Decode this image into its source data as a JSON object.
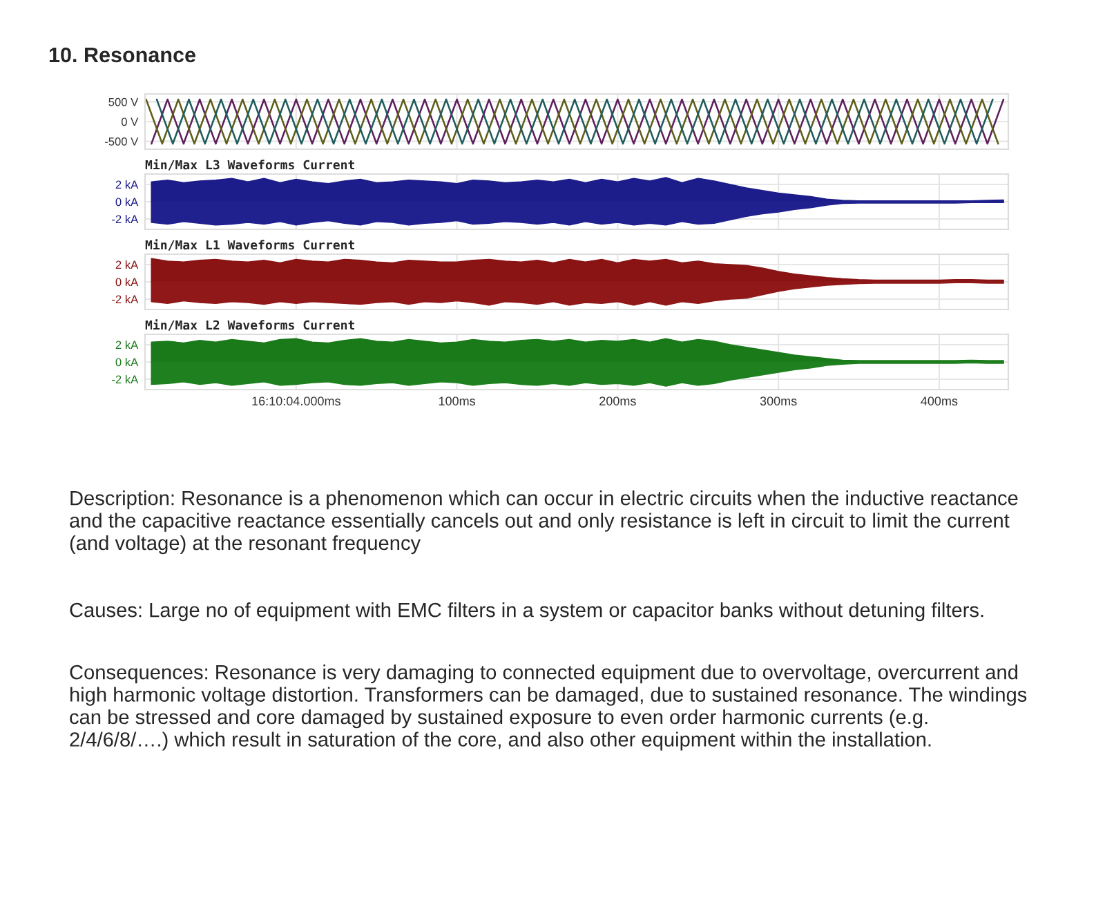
{
  "chart_data": [
    {
      "type": "line",
      "title": "10. Resonance",
      "xlim": [
        -94,
        443
      ],
      "xticks": [
        {
          "value": 0,
          "label": null
        },
        {
          "value": 100,
          "label": null
        },
        {
          "value": 200,
          "label": null
        },
        {
          "value": 300,
          "label": null
        },
        {
          "value": 400,
          "label": null
        }
      ],
      "ylim": [
        -700,
        700
      ],
      "yticks": [
        {
          "value": 500,
          "label": "500 V"
        },
        {
          "value": 0,
          "label": "0 V"
        },
        {
          "value": -500,
          "label": "-500 V"
        }
      ],
      "grid": true,
      "tick_labels": "y",
      "series": [
        {
          "color": "#5e1f5e",
          "x": [
            -90,
            -80,
            -70,
            -60,
            -50,
            -40,
            -30,
            -20,
            -10,
            0,
            10,
            20,
            30,
            40,
            50,
            60,
            70,
            80,
            90,
            100,
            110,
            120,
            130,
            140,
            150,
            160,
            170,
            180,
            190,
            200,
            210,
            220,
            230,
            240,
            250,
            260,
            270,
            280,
            290,
            300,
            310,
            320,
            330,
            340,
            350,
            360,
            370,
            380,
            390,
            400,
            410,
            420,
            430,
            440
          ],
          "values": [
            -560,
            560,
            -560,
            560,
            -560,
            560,
            -560,
            560,
            -560,
            560,
            -560,
            560,
            -560,
            560,
            -560,
            560,
            -560,
            560,
            -560,
            560,
            -560,
            560,
            -560,
            560,
            -560,
            560,
            -560,
            560,
            -560,
            560,
            -560,
            560,
            -560,
            560,
            -560,
            560,
            -560,
            560,
            -560,
            560,
            -560,
            560,
            -560,
            560,
            -560,
            560,
            -560,
            560,
            -560,
            560,
            -560,
            560,
            -560,
            560
          ]
        },
        {
          "color": "#5e5e1a",
          "x": [
            -93.3,
            -83.3,
            -73.3,
            -63.3,
            -53.3,
            -43.3,
            -33.3,
            -23.3,
            -13.3,
            -3.3,
            6.7,
            16.7,
            26.7,
            36.7,
            46.7,
            56.7,
            66.7,
            76.7,
            86.7,
            96.7,
            106.7,
            116.7,
            126.7,
            136.7,
            146.7,
            156.7,
            166.7,
            176.7,
            186.7,
            196.7,
            206.7,
            216.7,
            226.7,
            236.7,
            246.7,
            256.7,
            266.7,
            276.7,
            286.7,
            296.7,
            306.7,
            316.7,
            326.7,
            336.7,
            346.7,
            356.7,
            366.7,
            376.7,
            386.7,
            396.7,
            406.7,
            416.7,
            426.7,
            436.7
          ],
          "values": [
            560,
            -560,
            560,
            -560,
            560,
            -560,
            560,
            -560,
            560,
            -560,
            560,
            -560,
            560,
            -560,
            560,
            -560,
            560,
            -560,
            560,
            -560,
            560,
            -560,
            560,
            -560,
            560,
            -560,
            560,
            -560,
            560,
            -560,
            560,
            -560,
            560,
            -560,
            560,
            -560,
            560,
            -560,
            560,
            -560,
            560,
            -560,
            560,
            -560,
            560,
            -560,
            560,
            -560,
            560,
            -560,
            560,
            -560,
            560,
            -560
          ]
        },
        {
          "color": "#1f5c5c",
          "x": [
            -86.7,
            -76.7,
            -66.7,
            -56.7,
            -46.7,
            -36.7,
            -26.7,
            -16.7,
            -6.7,
            3.3,
            13.3,
            23.3,
            33.3,
            43.3,
            53.3,
            63.3,
            73.3,
            83.3,
            93.3,
            103.3,
            113.3,
            123.3,
            133.3,
            143.3,
            153.3,
            163.3,
            173.3,
            183.3,
            193.3,
            203.3,
            213.3,
            223.3,
            233.3,
            243.3,
            253.3,
            263.3,
            273.3,
            283.3,
            293.3,
            303.3,
            313.3,
            323.3,
            333.3,
            343.3,
            353.3,
            363.3,
            373.3,
            383.3,
            393.3,
            403.3,
            413.3,
            423.3,
            433.3
          ],
          "values": [
            560,
            -560,
            560,
            -560,
            560,
            -560,
            560,
            -560,
            560,
            -560,
            560,
            -560,
            560,
            -560,
            560,
            -560,
            560,
            -560,
            560,
            -560,
            560,
            -560,
            560,
            -560,
            560,
            -560,
            560,
            -560,
            560,
            -560,
            560,
            -560,
            560,
            -560,
            560,
            -560,
            560,
            -560,
            560,
            -560,
            560,
            -560,
            560,
            -560,
            560,
            -560,
            560,
            -560,
            560,
            -560,
            560,
            -560,
            560
          ]
        }
      ]
    },
    {
      "type": "area",
      "title": "Min/Max L3 Waveforms Current",
      "xlim": [
        -94,
        443
      ],
      "xticks": [
        {
          "value": 0,
          "label": null
        },
        {
          "value": 100,
          "label": null
        },
        {
          "value": 200,
          "label": null
        },
        {
          "value": 300,
          "label": null
        },
        {
          "value": 400,
          "label": null
        }
      ],
      "ylim": [
        -3.2,
        3.2
      ],
      "yticks": [
        {
          "value": 2,
          "label": "2 kA"
        },
        {
          "value": 0,
          "label": "0 kA"
        },
        {
          "value": -2,
          "label": "-2 kA"
        }
      ],
      "grid": true,
      "tick_labels": "y",
      "x": [
        -90,
        -80,
        -70,
        -60,
        -50,
        -40,
        -30,
        -20,
        -10,
        0,
        10,
        20,
        30,
        40,
        50,
        60,
        70,
        80,
        90,
        100,
        110,
        120,
        130,
        140,
        150,
        160,
        170,
        180,
        190,
        200,
        210,
        220,
        230,
        240,
        250,
        260,
        270,
        280,
        290,
        300,
        310,
        320,
        330,
        340,
        350,
        360,
        370,
        380,
        390,
        400,
        410,
        420,
        430,
        440
      ],
      "series": [
        {
          "color": "#1c1c8a",
          "values": [
            2.3,
            2.5,
            2.2,
            2.4,
            2.5,
            2.7,
            2.3,
            2.7,
            2.2,
            2.6,
            2.3,
            2.1,
            2.4,
            2.6,
            2.2,
            2.3,
            2.5,
            2.4,
            2.3,
            2.1,
            2.5,
            2.4,
            2.2,
            2.3,
            2.5,
            2.3,
            2.6,
            2.2,
            2.6,
            2.3,
            2.7,
            2.4,
            2.8,
            2.2,
            2.7,
            2.4,
            2.0,
            1.6,
            1.3,
            1.0,
            0.8,
            0.6,
            0.3,
            0.15,
            0.1,
            0.1,
            0.1,
            0.1,
            0.1,
            0.1,
            0.1,
            0.1,
            0.15,
            0.2
          ]
        },
        {
          "color": "#20208f",
          "values": [
            -2.4,
            -2.6,
            -2.3,
            -2.5,
            -2.7,
            -2.6,
            -2.4,
            -2.6,
            -2.3,
            -2.7,
            -2.4,
            -2.2,
            -2.5,
            -2.7,
            -2.3,
            -2.4,
            -2.7,
            -2.5,
            -2.4,
            -2.2,
            -2.6,
            -2.5,
            -2.3,
            -2.4,
            -2.6,
            -2.4,
            -2.7,
            -2.3,
            -2.6,
            -2.4,
            -2.7,
            -2.5,
            -2.7,
            -2.3,
            -2.6,
            -2.5,
            -2.1,
            -1.7,
            -1.4,
            -1.2,
            -0.9,
            -0.7,
            -0.4,
            -0.2,
            -0.15,
            -0.15,
            -0.15,
            -0.15,
            -0.15,
            -0.15,
            -0.15,
            -0.1,
            -0.1,
            -0.1
          ]
        }
      ]
    },
    {
      "type": "area",
      "title": "Min/Max L1 Waveforms Current",
      "xlim": [
        -94,
        443
      ],
      "xticks": [
        {
          "value": 0,
          "label": null
        },
        {
          "value": 100,
          "label": null
        },
        {
          "value": 200,
          "label": null
        },
        {
          "value": 300,
          "label": null
        },
        {
          "value": 400,
          "label": null
        }
      ],
      "ylim": [
        -3.2,
        3.2
      ],
      "yticks": [
        {
          "value": 2,
          "label": "2 kA"
        },
        {
          "value": 0,
          "label": "0 kA"
        },
        {
          "value": -2,
          "label": "-2 kA"
        }
      ],
      "grid": true,
      "tick_labels": "y",
      "x": [
        -90,
        -80,
        -70,
        -60,
        -50,
        -40,
        -30,
        -20,
        -10,
        0,
        10,
        20,
        30,
        40,
        50,
        60,
        70,
        80,
        90,
        100,
        110,
        120,
        130,
        140,
        150,
        160,
        170,
        180,
        190,
        200,
        210,
        220,
        230,
        240,
        250,
        260,
        270,
        280,
        290,
        300,
        310,
        320,
        330,
        340,
        350,
        360,
        370,
        380,
        390,
        400,
        410,
        420,
        430,
        440
      ],
      "series": [
        {
          "color": "#8a1414",
          "values": [
            2.7,
            2.4,
            2.3,
            2.5,
            2.6,
            2.4,
            2.3,
            2.5,
            2.2,
            2.6,
            2.4,
            2.3,
            2.6,
            2.5,
            2.3,
            2.2,
            2.5,
            2.4,
            2.3,
            2.3,
            2.5,
            2.6,
            2.4,
            2.3,
            2.5,
            2.2,
            2.6,
            2.3,
            2.6,
            2.2,
            2.6,
            2.4,
            2.6,
            2.2,
            2.4,
            2.1,
            2.0,
            1.9,
            1.6,
            1.2,
            0.9,
            0.7,
            0.5,
            0.35,
            0.25,
            0.2,
            0.2,
            0.2,
            0.2,
            0.2,
            0.25,
            0.25,
            0.2,
            0.2
          ]
        },
        {
          "color": "#901818",
          "values": [
            -2.3,
            -2.5,
            -2.2,
            -2.4,
            -2.5,
            -2.3,
            -2.4,
            -2.6,
            -2.3,
            -2.5,
            -2.3,
            -2.4,
            -2.5,
            -2.6,
            -2.4,
            -2.3,
            -2.6,
            -2.3,
            -2.4,
            -2.2,
            -2.4,
            -2.7,
            -2.3,
            -2.4,
            -2.6,
            -2.3,
            -2.7,
            -2.4,
            -2.5,
            -2.3,
            -2.7,
            -2.3,
            -2.7,
            -2.3,
            -2.5,
            -2.2,
            -2.0,
            -1.9,
            -1.5,
            -1.1,
            -0.8,
            -0.6,
            -0.4,
            -0.3,
            -0.2,
            -0.15,
            -0.15,
            -0.15,
            -0.15,
            -0.15,
            -0.1,
            -0.1,
            -0.15,
            -0.15
          ]
        }
      ]
    },
    {
      "type": "area",
      "title": "Min/Max L2 Waveforms Current",
      "xlim": [
        -94,
        443
      ],
      "xticks": [
        {
          "value": 0,
          "label": "16:10:04.000ms"
        },
        {
          "value": 100,
          "label": "100ms"
        },
        {
          "value": 200,
          "label": "200ms"
        },
        {
          "value": 300,
          "label": "300ms"
        },
        {
          "value": 400,
          "label": "400ms"
        }
      ],
      "ylim": [
        -3.2,
        3.2
      ],
      "yticks": [
        {
          "value": 2,
          "label": "2 kA"
        },
        {
          "value": 0,
          "label": "0 kA"
        },
        {
          "value": -2,
          "label": "-2 kA"
        }
      ],
      "grid": true,
      "x": [
        -90,
        -80,
        -70,
        -60,
        -50,
        -40,
        -30,
        -20,
        -10,
        0,
        10,
        20,
        30,
        40,
        50,
        60,
        70,
        80,
        90,
        100,
        110,
        120,
        130,
        140,
        150,
        160,
        170,
        180,
        190,
        200,
        210,
        220,
        230,
        240,
        250,
        260,
        270,
        280,
        290,
        300,
        310,
        320,
        330,
        340,
        350,
        360,
        370,
        380,
        390,
        400,
        410,
        420,
        430,
        440
      ],
      "series": [
        {
          "color": "#1a7a1a",
          "values": [
            2.3,
            2.4,
            2.2,
            2.5,
            2.3,
            2.6,
            2.4,
            2.2,
            2.6,
            2.7,
            2.3,
            2.2,
            2.5,
            2.7,
            2.4,
            2.3,
            2.6,
            2.4,
            2.2,
            2.3,
            2.6,
            2.4,
            2.3,
            2.5,
            2.6,
            2.4,
            2.6,
            2.3,
            2.5,
            2.4,
            2.6,
            2.3,
            2.7,
            2.3,
            2.6,
            2.4,
            2.0,
            1.7,
            1.4,
            1.1,
            0.8,
            0.6,
            0.4,
            0.2,
            0.15,
            0.15,
            0.15,
            0.15,
            0.15,
            0.15,
            0.15,
            0.2,
            0.15,
            0.15
          ]
        },
        {
          "color": "#1e801e",
          "values": [
            -2.6,
            -2.5,
            -2.3,
            -2.6,
            -2.4,
            -2.7,
            -2.5,
            -2.3,
            -2.7,
            -2.6,
            -2.4,
            -2.3,
            -2.6,
            -2.7,
            -2.5,
            -2.4,
            -2.7,
            -2.5,
            -2.3,
            -2.4,
            -2.7,
            -2.5,
            -2.4,
            -2.6,
            -2.7,
            -2.5,
            -2.7,
            -2.4,
            -2.6,
            -2.5,
            -2.7,
            -2.4,
            -2.8,
            -2.4,
            -2.7,
            -2.5,
            -2.1,
            -1.8,
            -1.5,
            -1.2,
            -0.9,
            -0.7,
            -0.4,
            -0.25,
            -0.15,
            -0.15,
            -0.15,
            -0.15,
            -0.15,
            -0.15,
            -0.15,
            -0.1,
            -0.15,
            -0.15
          ]
        }
      ],
      "annotations": [
        "Description: Resonance is a phenomenon which can occur in electric circuits when the inductive reactance and the capacitive reactance essentially cancels out and only resistance is left in circuit to limit the current (and voltage) at the resonant frequency",
        "Causes: Large no of equipment with EMC filters in a system or capacitor banks without detuning filters.",
        "Consequences: Resonance is very damaging to connected equipment due to overvoltage, overcurrent and high harmonic voltage distortion. Transformers can be damaged, due to sustained resonance. The windings can be stressed and core damaged by sustained exposure to even order harmonic currents (e.g. 2/4/6/8/….) which result in saturation of the core, and also other equipment within the installation."
      ]
    }
  ]
}
